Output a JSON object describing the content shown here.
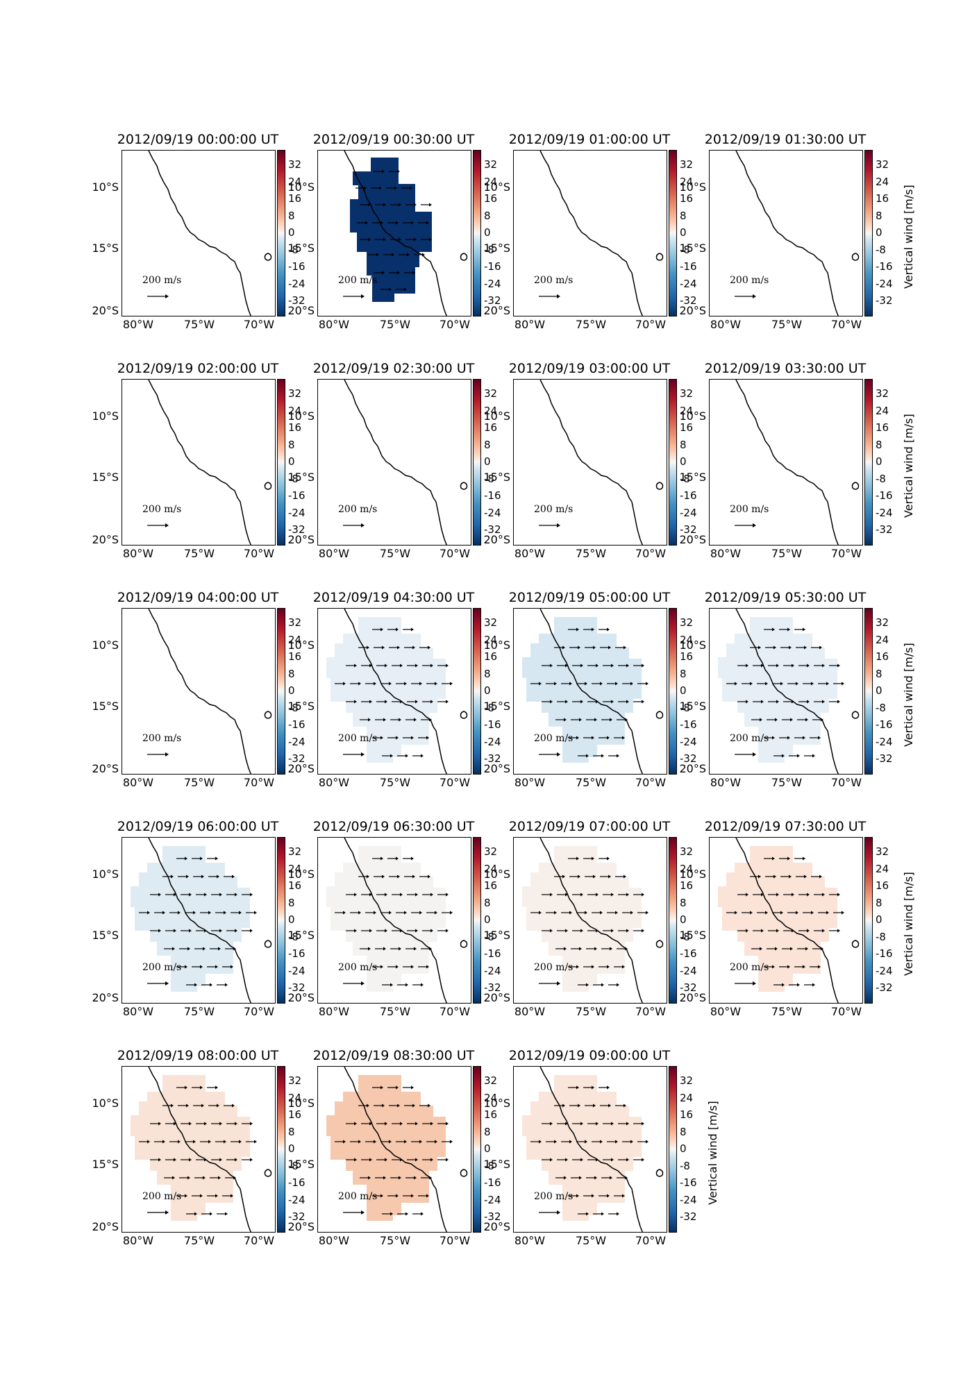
{
  "panels": [
    {
      "title": "2012/09/19 00:00:00 UT",
      "fill": "none",
      "arrows": false,
      "colorbar_label": ""
    },
    {
      "title": "2012/09/19 00:30:00 UT",
      "fill": "#08306b",
      "arrows": true,
      "colorbar_label": ""
    },
    {
      "title": "2012/09/19 01:00:00 UT",
      "fill": "none",
      "arrows": false,
      "colorbar_label": ""
    },
    {
      "title": "2012/09/19 01:30:00 UT",
      "fill": "none",
      "arrows": false,
      "colorbar_label": "Vertical wind [m/s]"
    },
    {
      "title": "2012/09/19 02:00:00 UT",
      "fill": "none",
      "arrows": false,
      "colorbar_label": ""
    },
    {
      "title": "2012/09/19 02:30:00 UT",
      "fill": "none",
      "arrows": false,
      "colorbar_label": ""
    },
    {
      "title": "2012/09/19 03:00:00 UT",
      "fill": "none",
      "arrows": false,
      "colorbar_label": ""
    },
    {
      "title": "2012/09/19 03:30:00 UT",
      "fill": "none",
      "arrows": false,
      "colorbar_label": "Vertical wind [m/s]"
    },
    {
      "title": "2012/09/19 04:00:00 UT",
      "fill": "none",
      "arrows": false,
      "colorbar_label": ""
    },
    {
      "title": "2012/09/19 04:30:00 UT",
      "fill": "#e6eff5",
      "arrows": true,
      "colorbar_label": ""
    },
    {
      "title": "2012/09/19 05:00:00 UT",
      "fill": "#d6e7f1",
      "arrows": true,
      "colorbar_label": ""
    },
    {
      "title": "2012/09/19 05:30:00 UT",
      "fill": "#e6eff5",
      "arrows": true,
      "colorbar_label": "Vertical wind [m/s]"
    },
    {
      "title": "2012/09/19 06:00:00 UT",
      "fill": "#dfebf3",
      "arrows": true,
      "colorbar_label": ""
    },
    {
      "title": "2012/09/19 06:30:00 UT",
      "fill": "#f4f3f2",
      "arrows": true,
      "colorbar_label": ""
    },
    {
      "title": "2012/09/19 07:00:00 UT",
      "fill": "#f7efea",
      "arrows": true,
      "colorbar_label": ""
    },
    {
      "title": "2012/09/19 07:30:00 UT",
      "fill": "#fbe3d7",
      "arrows": true,
      "colorbar_label": "Vertical wind [m/s]"
    },
    {
      "title": "2012/09/19 08:00:00 UT",
      "fill": "#f9e3d6",
      "arrows": true,
      "colorbar_label": ""
    },
    {
      "title": "2012/09/19 08:30:00 UT",
      "fill": "#f6c8ae",
      "arrows": true,
      "colorbar_label": ""
    },
    {
      "title": "2012/09/19 09:00:00 UT",
      "fill": "#f9e5d9",
      "arrows": true,
      "colorbar_label": "Vertical wind [m/s]"
    }
  ],
  "lat_labels": [
    "10°S",
    "15°S",
    "20°S"
  ],
  "lon_labels": [
    "80°W",
    "75°W",
    "70°W"
  ],
  "colorbar_ticks": [
    "32",
    "24",
    "16",
    "8",
    "0",
    "-8",
    "-16",
    "-24",
    "-32"
  ],
  "reference_arrow_label": "200 m/s",
  "colors": {
    "coastline": "#000000",
    "arrow": "#000000"
  }
}
